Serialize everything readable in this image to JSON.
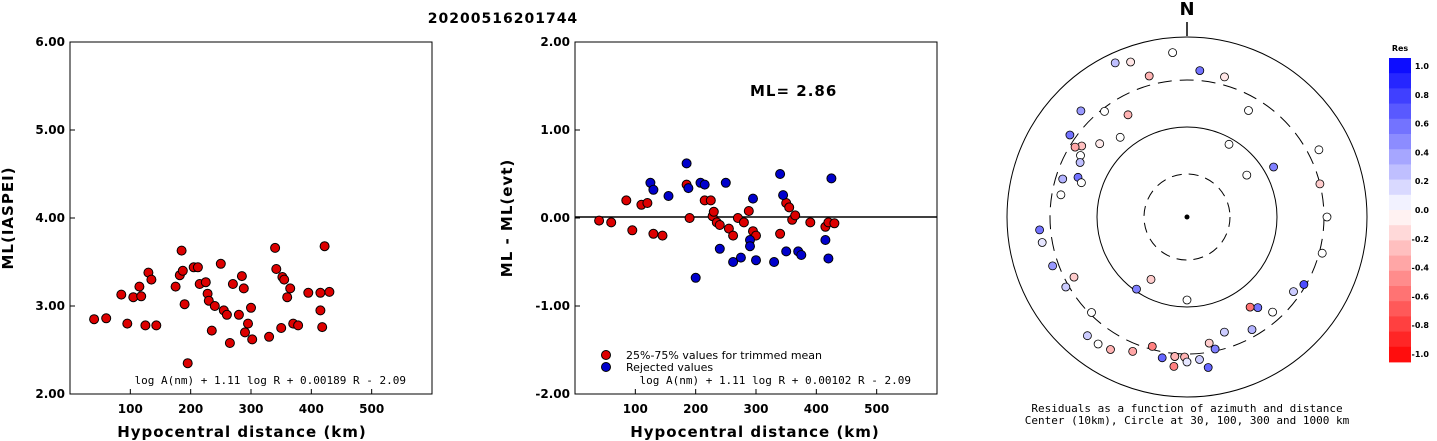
{
  "title": "20200516201744",
  "chart_data": [
    {
      "type": "scatter",
      "xlabel": "Hypocentral distance (km)",
      "ylabel": "ML(IASPEI)",
      "xlim": [
        0,
        600
      ],
      "ylim": [
        2.0,
        6.0
      ],
      "xticks": [
        "100",
        "200",
        "300",
        "400",
        "500"
      ],
      "yticks": [
        "2.00",
        "3.00",
        "4.00",
        "5.00",
        "6.00"
      ],
      "formula": "log A(nm) + 1.11 log R + 0.00189 R - 2.09",
      "series": [
        {
          "color": "#dd0000",
          "points": [
            [
              40,
              2.85
            ],
            [
              60,
              2.86
            ],
            [
              85,
              3.13
            ],
            [
              95,
              2.8
            ],
            [
              105,
              3.1
            ],
            [
              115,
              3.22
            ],
            [
              118,
              3.11
            ],
            [
              125,
              2.78
            ],
            [
              130,
              3.38
            ],
            [
              135,
              3.3
            ],
            [
              143,
              2.78
            ],
            [
              175,
              3.22
            ],
            [
              182,
              3.35
            ],
            [
              185,
              3.63
            ],
            [
              187,
              3.4
            ],
            [
              190,
              3.02
            ],
            [
              195,
              2.35
            ],
            [
              205,
              3.44
            ],
            [
              212,
              3.44
            ],
            [
              215,
              3.25
            ],
            [
              225,
              3.27
            ],
            [
              228,
              3.14
            ],
            [
              230,
              3.06
            ],
            [
              235,
              2.72
            ],
            [
              240,
              3.0
            ],
            [
              250,
              3.48
            ],
            [
              255,
              2.95
            ],
            [
              260,
              2.9
            ],
            [
              265,
              2.58
            ],
            [
              270,
              3.25
            ],
            [
              280,
              2.9
            ],
            [
              285,
              3.34
            ],
            [
              288,
              3.2
            ],
            [
              290,
              2.7
            ],
            [
              295,
              2.8
            ],
            [
              300,
              2.98
            ],
            [
              302,
              2.62
            ],
            [
              330,
              2.65
            ],
            [
              340,
              3.66
            ],
            [
              342,
              3.42
            ],
            [
              350,
              2.75
            ],
            [
              352,
              3.33
            ],
            [
              355,
              3.3
            ],
            [
              360,
              3.1
            ],
            [
              365,
              3.2
            ],
            [
              370,
              2.8
            ],
            [
              378,
              2.78
            ],
            [
              395,
              3.15
            ],
            [
              415,
              3.15
            ],
            [
              415,
              2.95
            ],
            [
              418,
              2.76
            ],
            [
              422,
              3.68
            ],
            [
              430,
              3.16
            ]
          ]
        }
      ]
    },
    {
      "type": "scatter",
      "xlabel": "Hypocentral distance (km)",
      "ylabel": "ML - ML(evt)",
      "xlim": [
        0,
        600
      ],
      "ylim": [
        -2.0,
        2.0
      ],
      "xticks": [
        "100",
        "200",
        "300",
        "400",
        "500"
      ],
      "yticks": [
        "-2.00",
        "-1.00",
        "0.00",
        "1.00",
        "2.00"
      ],
      "ml_label": "ML= 2.86",
      "formula": "log A(nm) + 1.11 log R + 0.00102 R - 2.09",
      "series": [
        {
          "name": "25%-75% values for trimmed mean",
          "color": "#dd0000",
          "points": [
            [
              40,
              -0.03
            ],
            [
              60,
              -0.05
            ],
            [
              85,
              0.2
            ],
            [
              95,
              -0.14
            ],
            [
              110,
              0.15
            ],
            [
              120,
              0.17
            ],
            [
              130,
              -0.18
            ],
            [
              145,
              -0.2
            ],
            [
              185,
              0.38
            ],
            [
              190,
              0.0
            ],
            [
              215,
              0.2
            ],
            [
              225,
              0.2
            ],
            [
              228,
              0.02
            ],
            [
              230,
              0.07
            ],
            [
              235,
              -0.05
            ],
            [
              240,
              -0.08
            ],
            [
              255,
              -0.12
            ],
            [
              262,
              -0.2
            ],
            [
              270,
              0.0
            ],
            [
              280,
              -0.05
            ],
            [
              288,
              0.08
            ],
            [
              295,
              -0.15
            ],
            [
              300,
              -0.2
            ],
            [
              340,
              -0.18
            ],
            [
              350,
              0.17
            ],
            [
              355,
              0.12
            ],
            [
              360,
              -0.02
            ],
            [
              365,
              0.03
            ],
            [
              390,
              -0.05
            ],
            [
              415,
              -0.1
            ],
            [
              420,
              -0.05
            ],
            [
              430,
              -0.06
            ]
          ]
        },
        {
          "name": "Rejected values",
          "color": "#0000cc",
          "points": [
            [
              125,
              0.4
            ],
            [
              130,
              0.32
            ],
            [
              155,
              0.25
            ],
            [
              185,
              0.62
            ],
            [
              188,
              0.34
            ],
            [
              200,
              -0.68
            ],
            [
              208,
              0.4
            ],
            [
              215,
              0.38
            ],
            [
              240,
              -0.35
            ],
            [
              250,
              0.4
            ],
            [
              262,
              -0.5
            ],
            [
              275,
              -0.45
            ],
            [
              290,
              -0.25
            ],
            [
              290,
              -0.32
            ],
            [
              295,
              0.22
            ],
            [
              300,
              -0.48
            ],
            [
              330,
              -0.5
            ],
            [
              340,
              0.5
            ],
            [
              345,
              0.26
            ],
            [
              350,
              -0.38
            ],
            [
              370,
              -0.38
            ],
            [
              375,
              -0.42
            ],
            [
              415,
              -0.25
            ],
            [
              420,
              -0.46
            ],
            [
              425,
              0.45
            ]
          ]
        }
      ]
    },
    {
      "type": "scatter",
      "projection": "polar",
      "north_label": "N",
      "caption_line1": "Residuals as a function of azimuth and distance",
      "caption_line2": "Center (10km), Circle at 30, 100, 300 and 1000 km",
      "colorbar_title": "Res",
      "colorbar_labels": [
        "1.0",
        "0.8",
        "0.6",
        "0.4",
        "0.2",
        "0.0",
        "-0.2",
        "-0.4",
        "-0.6",
        "-0.8",
        "-1.0"
      ],
      "points": [
        [
          -50,
          114,
          -0.08
        ],
        [
          -40,
          104,
          0.0
        ],
        [
          -56,
          127,
          -0.25
        ],
        [
          -60,
          123,
          0.0
        ],
        [
          -63,
          120,
          0.25
        ],
        [
          -58,
          132,
          -0.35
        ],
        [
          -70,
          116,
          0.55
        ],
        [
          -80,
          128,
          0.0
        ],
        [
          -72,
          111,
          0.0
        ],
        [
          -73,
          130,
          0.3
        ],
        [
          -55,
          143,
          0.55
        ],
        [
          -45,
          150,
          0.4
        ],
        [
          -38,
          134,
          0.0
        ],
        [
          5,
          147,
          0.55
        ],
        [
          15,
          145,
          -0.1
        ],
        [
          30,
          123,
          0.0
        ],
        [
          30,
          84,
          0.0
        ],
        [
          55,
          73,
          0.0
        ],
        [
          76,
          137,
          -0.2
        ],
        [
          90,
          140,
          0.0
        ],
        [
          105,
          140,
          0.0
        ],
        [
          60,
          100,
          0.5
        ],
        [
          63,
          148,
          0.0
        ],
        [
          -5,
          165,
          0.0
        ],
        [
          -20,
          165,
          -0.1
        ],
        [
          -25,
          170,
          0.25
        ],
        [
          -15,
          146,
          -0.3
        ],
        [
          -30,
          118,
          -0.3
        ],
        [
          180,
          83,
          0.0
        ],
        [
          -120,
          140,
          0.2
        ],
        [
          -110,
          143,
          0.4
        ],
        [
          -100,
          147,
          0.1
        ],
        [
          -95,
          148,
          0.55
        ],
        [
          -118,
          128,
          -0.2
        ],
        [
          -145,
          88,
          0.5
        ],
        [
          -150,
          72,
          -0.2
        ],
        [
          170,
          128,
          -0.2
        ],
        [
          162,
          121,
          0.2
        ],
        [
          150,
          130,
          0.3
        ],
        [
          138,
          128,
          0.0
        ],
        [
          142,
          115,
          0.55
        ],
        [
          -175,
          150,
          -0.5
        ],
        [
          -175,
          140,
          -0.4
        ],
        [
          -175,
          140,
          -0.3
        ],
        [
          -179,
          140,
          -0.3
        ],
        [
          180,
          145,
          0.1
        ],
        [
          175,
          143,
          0.2
        ],
        [
          172,
          152,
          0.6
        ],
        [
          168,
          135,
          0.5
        ],
        [
          -170,
          143,
          0.6
        ],
        [
          -165,
          134,
          -0.5
        ],
        [
          -158,
          145,
          -0.35
        ],
        [
          -150,
          153,
          -0.3
        ],
        [
          -145,
          155,
          0.0
        ],
        [
          -140,
          155,
          0.2
        ],
        [
          -135,
          135,
          0.0
        ],
        [
          145,
          110,
          -0.55
        ],
        [
          125,
          130,
          0.2
        ],
        [
          120,
          135,
          0.7
        ]
      ]
    }
  ]
}
